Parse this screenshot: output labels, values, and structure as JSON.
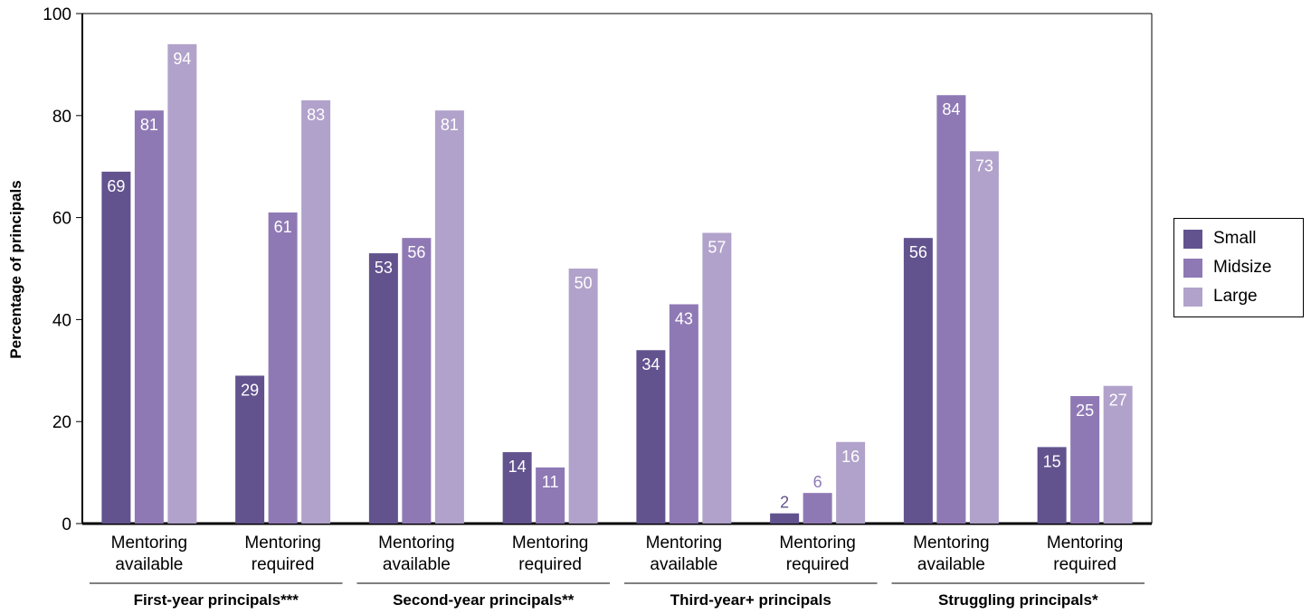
{
  "chart_data": {
    "type": "bar",
    "ylabel": "Percentage of principals",
    "ylim": [
      0,
      100
    ],
    "yticks": [
      "0",
      "20",
      "40",
      "60",
      "80",
      "100"
    ],
    "grid": false,
    "legend_position": "right",
    "series": [
      {
        "name": "Small",
        "color": "#62538e",
        "values": [
          69,
          29,
          53,
          14,
          34,
          2,
          56,
          15
        ],
        "labels": [
          "69",
          "29",
          "53",
          "14",
          "34",
          "2",
          "56",
          "15"
        ]
      },
      {
        "name": "Midsize",
        "color": "#8f79b5",
        "values": [
          81,
          61,
          56,
          11,
          43,
          6,
          84,
          25
        ],
        "labels": [
          "81",
          "61",
          "56",
          "11",
          "43",
          "6",
          "84",
          "25"
        ]
      },
      {
        "name": "Large",
        "color": "#b1a2cb",
        "values": [
          94,
          83,
          81,
          50,
          57,
          16,
          73,
          27
        ],
        "labels": [
          "94",
          "83",
          "81",
          "50",
          "57",
          "16",
          "73",
          "27"
        ]
      }
    ],
    "categories": [
      [
        "Mentoring",
        "available"
      ],
      [
        "Mentoring",
        "required"
      ],
      [
        "Mentoring",
        "available"
      ],
      [
        "Mentoring",
        "required"
      ],
      [
        "Mentoring",
        "available"
      ],
      [
        "Mentoring",
        "required"
      ],
      [
        "Mentoring",
        "available"
      ],
      [
        "Mentoring",
        "required"
      ]
    ],
    "groups": [
      "First-year principals***",
      "Second-year principals**",
      "Third-year+ principals",
      "Struggling principals*"
    ]
  }
}
